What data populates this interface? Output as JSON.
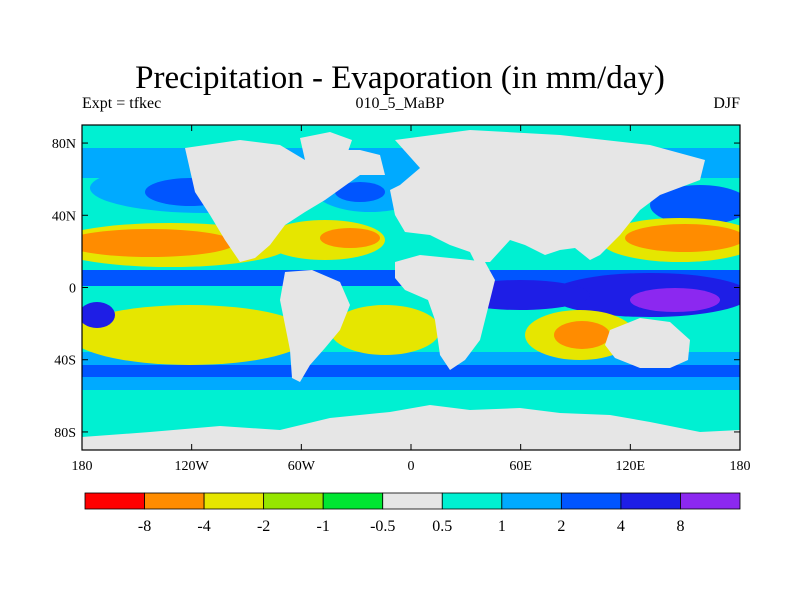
{
  "title": "Precipitation - Evaporation (in mm/day)",
  "subtitle_left": "Expt = tfkec",
  "subtitle_center": "010_5_MaBP",
  "subtitle_right": "DJF",
  "axes": {
    "lon_ticks": [
      {
        "lon": -180,
        "label": "180"
      },
      {
        "lon": -120,
        "label": "120W"
      },
      {
        "lon": -60,
        "label": "60W"
      },
      {
        "lon": 0,
        "label": "0"
      },
      {
        "lon": 60,
        "label": "60E"
      },
      {
        "lon": 120,
        "label": "120E"
      },
      {
        "lon": 180,
        "label": "180"
      }
    ],
    "lat_ticks": [
      {
        "lat": 80,
        "label": "80N"
      },
      {
        "lat": 40,
        "label": "40N"
      },
      {
        "lat": 0,
        "label": "0"
      },
      {
        "lat": -40,
        "label": "40S"
      },
      {
        "lat": -80,
        "label": "80S"
      }
    ],
    "lon_range": [
      -180,
      180
    ],
    "lat_range": [
      -90,
      90
    ]
  },
  "colorbar": {
    "colors": [
      "#ff0000",
      "#ff8c00",
      "#e6e600",
      "#96e600",
      "#00e632",
      "#e6e6e6",
      "#00f0d2",
      "#00aaff",
      "#0055ff",
      "#1e1ee6",
      "#8c28f0"
    ],
    "labels": [
      "-8",
      "-4",
      "-2",
      "-1",
      "-0.5",
      "0.5",
      "1",
      "2",
      "4",
      "8"
    ]
  },
  "colors": {
    "land": "#e6e6e6",
    "dry_strong": "#ff0000",
    "dry": "#ff8c00",
    "dry_mid": "#e6e600",
    "dry_weak": "#96e600",
    "wet_weak": "#00f0d2",
    "wet": "#00aaff",
    "wet_mid": "#0055ff",
    "wet_strong": "#1e1ee6",
    "wet_max": "#8c28f0"
  }
}
